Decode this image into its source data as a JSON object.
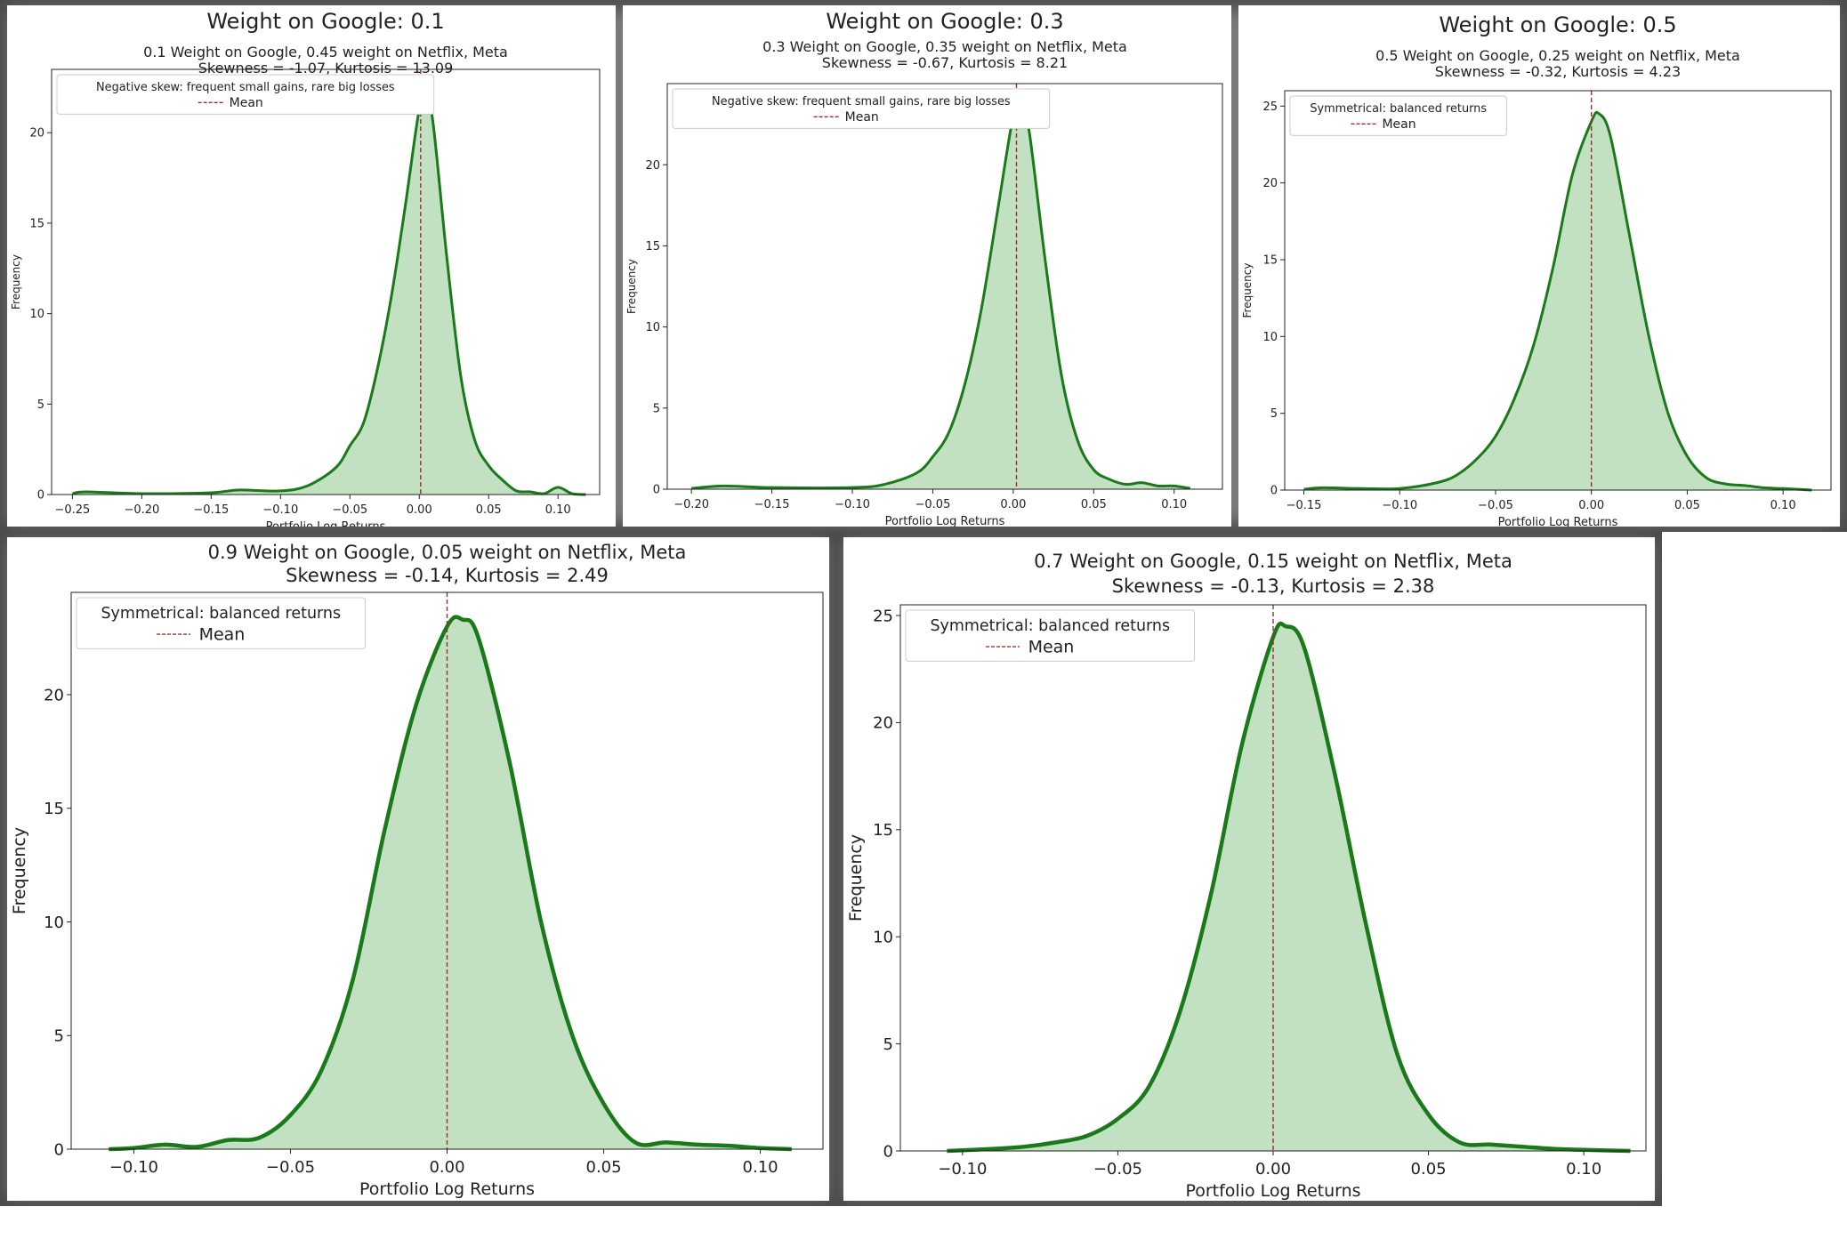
{
  "chart_data": [
    {
      "type": "area",
      "suptitle": "Weight on Google: 0.1",
      "title_line1": "0.1 Weight on Google, 0.45 weight on Netflix, Meta",
      "title_line2": "Skewness = -1.07, Kurtosis = 13.09",
      "xlabel": "Portfolio Log Returns",
      "ylabel": "Frequency",
      "xlim": [
        -0.265,
        0.13
      ],
      "ylim": [
        0,
        23.5
      ],
      "xticks": [
        -0.25,
        -0.2,
        -0.15,
        -0.1,
        -0.05,
        0.0,
        0.05,
        0.1
      ],
      "xtick_labels": [
        "−0.25",
        "−0.20",
        "−0.15",
        "−0.10",
        "−0.05",
        "0.00",
        "0.05",
        "0.10"
      ],
      "yticks": [
        0,
        5,
        10,
        15,
        20
      ],
      "ytick_labels": [
        "0",
        "5",
        "10",
        "15",
        "20"
      ],
      "legend": {
        "position": "top-left",
        "title": "Negative skew: frequent small gains, rare big losses",
        "entries": [
          "Mean"
        ]
      },
      "mean": 0.001,
      "line_color": "#1a7a1a",
      "fill_color": "#c2e0c2",
      "mean_color": "#9b2d2d",
      "series": [
        {
          "x": [
            -0.25,
            -0.24,
            -0.2,
            -0.15,
            -0.13,
            -0.1,
            -0.08,
            -0.06,
            -0.05,
            -0.04,
            -0.03,
            -0.02,
            -0.01,
            0,
            0.005,
            0.01,
            0.02,
            0.03,
            0.04,
            0.05,
            0.06,
            0.07,
            0.08,
            0.09,
            0.1,
            0.11,
            0.12
          ],
          "y": [
            0.05,
            0.15,
            0.05,
            0.1,
            0.25,
            0.2,
            0.5,
            1.5,
            2.7,
            4,
            7,
            11,
            16,
            21.3,
            22,
            20.5,
            13,
            6.5,
            3,
            1.6,
            0.8,
            0.2,
            0.15,
            0.05,
            0.4,
            0.05,
            0.0
          ]
        }
      ]
    },
    {
      "type": "area",
      "suptitle": "Weight on Google: 0.3",
      "title_line1": "0.3 Weight on Google, 0.35 weight on Netflix, Meta",
      "title_line2": "Skewness = -0.67, Kurtosis = 8.21",
      "xlabel": "Portfolio Log Returns",
      "ylabel": "Frequency",
      "xlim": [
        -0.215,
        0.13
      ],
      "ylim": [
        0,
        25
      ],
      "xticks": [
        -0.2,
        -0.15,
        -0.1,
        -0.05,
        0.0,
        0.05,
        0.1
      ],
      "xtick_labels": [
        "−0.20",
        "−0.15",
        "−0.10",
        "−0.05",
        "0.00",
        "0.05",
        "0.10"
      ],
      "yticks": [
        0,
        5,
        10,
        15,
        20
      ],
      "ytick_labels": [
        "0",
        "5",
        "10",
        "15",
        "20"
      ],
      "legend": {
        "position": "top-left",
        "title": "Negative skew: frequent small gains, rare big losses",
        "entries": [
          "Mean"
        ]
      },
      "mean": 0.002,
      "line_color": "#1a7a1a",
      "fill_color": "#c2e0c2",
      "mean_color": "#9b2d2d",
      "series": [
        {
          "x": [
            -0.2,
            -0.18,
            -0.15,
            -0.1,
            -0.08,
            -0.06,
            -0.05,
            -0.04,
            -0.03,
            -0.02,
            -0.01,
            0,
            0.005,
            0.01,
            0.02,
            0.03,
            0.04,
            0.05,
            0.06,
            0.07,
            0.08,
            0.09,
            0.1,
            0.11
          ],
          "y": [
            0.05,
            0.2,
            0.1,
            0.1,
            0.3,
            1.0,
            2.0,
            3.5,
            6.5,
            11,
            17,
            23,
            23.8,
            22,
            14,
            7,
            3,
            1.2,
            0.6,
            0.3,
            0.4,
            0.2,
            0.2,
            0.05
          ]
        }
      ]
    },
    {
      "type": "area",
      "suptitle": "Weight on Google: 0.5",
      "title_line1": "0.5 Weight on Google, 0.25 weight on Netflix, Meta",
      "title_line2": "Skewness = -0.32, Kurtosis = 4.23",
      "xlabel": "Portfolio Log Returns",
      "ylabel": "Frequency",
      "xlim": [
        -0.16,
        0.125
      ],
      "ylim": [
        0,
        26
      ],
      "xticks": [
        -0.15,
        -0.1,
        -0.05,
        0.0,
        0.05,
        0.1
      ],
      "xtick_labels": [
        "−0.15",
        "−0.10",
        "−0.05",
        "0.00",
        "0.05",
        "0.10"
      ],
      "yticks": [
        0,
        5,
        10,
        15,
        20,
        25
      ],
      "ytick_labels": [
        "0",
        "5",
        "10",
        "15",
        "20",
        "25"
      ],
      "legend": {
        "position": "top-left",
        "title": "Symmetrical: balanced returns",
        "entries": [
          "Mean"
        ]
      },
      "mean": 0.0,
      "line_color": "#1a7a1a",
      "fill_color": "#c2e0c2",
      "mean_color": "#9b2d2d",
      "series": [
        {
          "x": [
            -0.15,
            -0.14,
            -0.12,
            -0.1,
            -0.08,
            -0.07,
            -0.06,
            -0.05,
            -0.04,
            -0.03,
            -0.02,
            -0.01,
            0,
            0.004,
            0.01,
            0.02,
            0.03,
            0.04,
            0.05,
            0.06,
            0.07,
            0.08,
            0.09,
            0.1,
            0.115
          ],
          "y": [
            0.05,
            0.15,
            0.1,
            0.1,
            0.5,
            1,
            2,
            3.5,
            6,
            9.5,
            14.5,
            20.5,
            24,
            24.5,
            23,
            16.5,
            10,
            5,
            2.2,
            0.8,
            0.4,
            0.3,
            0.15,
            0.1,
            0.0
          ]
        }
      ]
    },
    {
      "type": "area",
      "title_line1": "0.9 Weight on Google, 0.05 weight on Netflix, Meta",
      "title_line2": "Skewness = -0.14, Kurtosis = 2.49",
      "xlabel": "Portfolio Log Returns",
      "ylabel": "Frequency",
      "xlim": [
        -0.12,
        0.12
      ],
      "ylim": [
        0,
        24.5
      ],
      "xticks": [
        -0.1,
        -0.05,
        0.0,
        0.05,
        0.1
      ],
      "xtick_labels": [
        "−0.10",
        "−0.05",
        "0.00",
        "0.05",
        "0.10"
      ],
      "yticks": [
        0,
        5,
        10,
        15,
        20
      ],
      "ytick_labels": [
        "0",
        "5",
        "10",
        "15",
        "20"
      ],
      "legend": {
        "position": "top-left",
        "title": "Symmetrical: balanced returns",
        "entries": [
          "Mean"
        ]
      },
      "mean": 0.0,
      "line_color": "#1a7a1a",
      "fill_color": "#c2e0c2",
      "mean_color": "#9b2d2d",
      "series": [
        {
          "x": [
            -0.108,
            -0.1,
            -0.09,
            -0.08,
            -0.07,
            -0.06,
            -0.05,
            -0.04,
            -0.03,
            -0.02,
            -0.01,
            0,
            0.005,
            0.01,
            0.02,
            0.03,
            0.04,
            0.05,
            0.06,
            0.07,
            0.08,
            0.09,
            0.1,
            0.11
          ],
          "y": [
            0.0,
            0.05,
            0.2,
            0.1,
            0.4,
            0.5,
            1.5,
            3.5,
            7.5,
            14,
            19.5,
            23,
            23.3,
            22.5,
            17,
            10,
            5,
            2,
            0.3,
            0.3,
            0.2,
            0.15,
            0.05,
            0.0
          ]
        }
      ]
    },
    {
      "type": "area",
      "title_line1": "0.7 Weight on Google, 0.15 weight on Netflix, Meta",
      "title_line2": "Skewness = -0.13, Kurtosis = 2.38",
      "xlabel": "Portfolio Log Returns",
      "ylabel": "Frequency",
      "xlim": [
        -0.12,
        0.12
      ],
      "ylim": [
        0,
        25.5
      ],
      "xticks": [
        -0.1,
        -0.05,
        0.0,
        0.05,
        0.1
      ],
      "xtick_labels": [
        "−0.10",
        "−0.05",
        "0.00",
        "0.05",
        "0.10"
      ],
      "yticks": [
        0,
        5,
        10,
        15,
        20,
        25
      ],
      "ytick_labels": [
        "0",
        "5",
        "10",
        "15",
        "20",
        "25"
      ],
      "legend": {
        "position": "top-left",
        "title": "Symmetrical: balanced returns",
        "entries": [
          "Mean"
        ]
      },
      "mean": 0.0,
      "line_color": "#1a7a1a",
      "fill_color": "#c2e0c2",
      "mean_color": "#9b2d2d",
      "series": [
        {
          "x": [
            -0.105,
            -0.09,
            -0.08,
            -0.07,
            -0.06,
            -0.05,
            -0.04,
            -0.03,
            -0.02,
            -0.01,
            0,
            0.004,
            0.01,
            0.02,
            0.03,
            0.04,
            0.05,
            0.06,
            0.07,
            0.08,
            0.09,
            0.1,
            0.115
          ],
          "y": [
            0.0,
            0.1,
            0.2,
            0.4,
            0.7,
            1.5,
            3,
            6.5,
            12,
            19,
            24,
            24.5,
            23.5,
            17.5,
            10.5,
            4.5,
            1.7,
            0.4,
            0.3,
            0.2,
            0.1,
            0.05,
            0.0
          ]
        }
      ]
    }
  ]
}
